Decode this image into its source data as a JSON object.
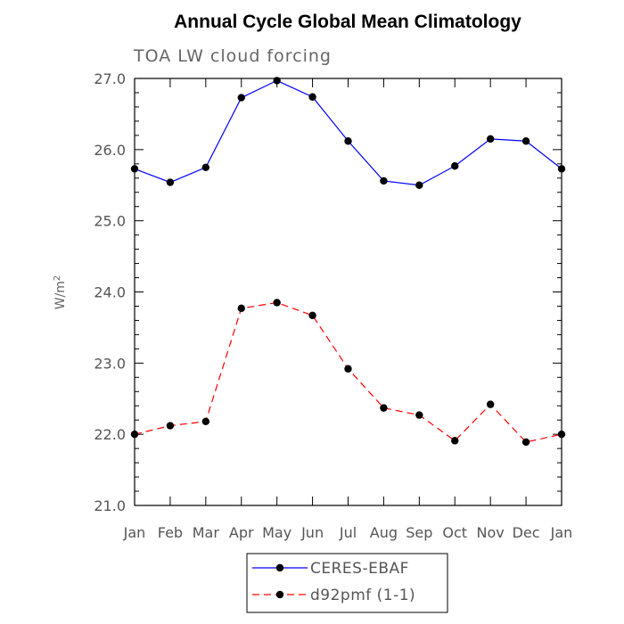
{
  "chart_data": {
    "type": "line",
    "title": "Annual Cycle Global Mean Climatology",
    "subtitle": "TOA LW cloud forcing",
    "ylabel_base": "W/m",
    "ylabel_sup": "2",
    "categories": [
      "Jan",
      "Feb",
      "Mar",
      "Apr",
      "May",
      "Jun",
      "Jul",
      "Aug",
      "Sep",
      "Oct",
      "Nov",
      "Dec",
      "Jan"
    ],
    "ylim": [
      21.0,
      27.0
    ],
    "yticks": [
      "21.0",
      "22.0",
      "23.0",
      "24.0",
      "25.0",
      "26.0",
      "27.0"
    ],
    "series": [
      {
        "name": "CERES-EBAF",
        "color": "#0000ff",
        "dash": "solid",
        "values": [
          25.73,
          25.54,
          25.75,
          26.73,
          26.97,
          26.74,
          26.12,
          25.56,
          25.5,
          25.77,
          26.15,
          26.12,
          25.73
        ]
      },
      {
        "name": "d92pmf (1-1)",
        "color": "#ff0000",
        "dash": "dashed",
        "values": [
          22.0,
          22.12,
          22.18,
          23.77,
          23.85,
          23.67,
          22.92,
          22.37,
          22.27,
          21.91,
          22.42,
          21.89,
          22.0
        ]
      }
    ],
    "legend_placement": "bottom-center"
  }
}
